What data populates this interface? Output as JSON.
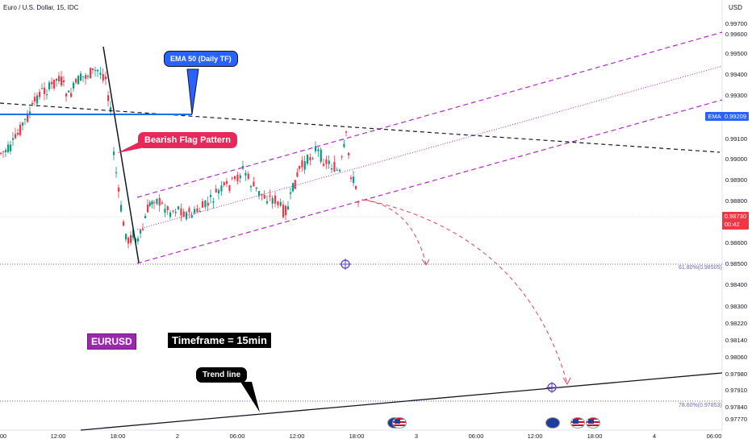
{
  "title": "Euro / U.S. Dollar, 15, IDC",
  "currency": "USD",
  "y_axis_labels": [
    "0.99700",
    "0.99600",
    "0.99500",
    "0.99400",
    "0.99300",
    "0.99100",
    "0.99000",
    "0.98900",
    "0.98800",
    "0.98600",
    "0.98500",
    "0.98400",
    "0.98300",
    "0.98220",
    "0.98140",
    "0.98060",
    "0.97980",
    "0.97910",
    "0.97840",
    "0.97770"
  ],
  "x_axis_labels": [
    "00",
    "12:00",
    "18:00",
    "2",
    "06:00",
    "12:00",
    "18:00",
    "3",
    "06:00",
    "12:00",
    "18:00",
    "4",
    "06:00"
  ],
  "ema_tag": {
    "name": "EMA",
    "value": "0.99209",
    "color": "#2962ff"
  },
  "current_price": {
    "value": "0.98730",
    "countdown": "00:42",
    "color": "#f23645"
  },
  "fib_61": "61.80%(0.98505)",
  "fib_78": "78.60%(0.97853)",
  "callouts": {
    "ema": "EMA 50 (Daily TF)",
    "flag": "Bearish Flag Pattern",
    "trend": "Trend line"
  },
  "labels": {
    "symbol": "EURUSD",
    "timeframe": "Timeframe = 15min"
  },
  "colors": {
    "bull": "#089981",
    "bear": "#f23645",
    "channel": "#b12cc9",
    "projection": "#e0435b",
    "ema_line": "#1f6feb",
    "fib": "#6b62c9",
    "symbol_bg": "#9c27b0"
  }
}
